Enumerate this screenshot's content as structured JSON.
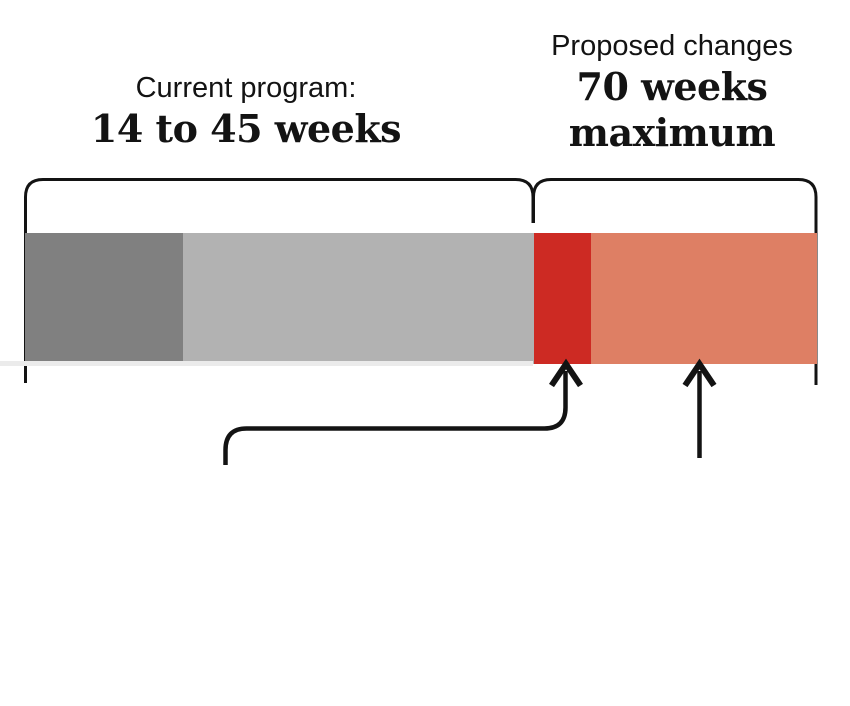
{
  "page": {
    "background_color": "#ffffff"
  },
  "labels": {
    "current": {
      "title": "Current program:",
      "value": "14 to 45 weeks"
    },
    "proposed": {
      "title": "Proposed changes",
      "value_line1": "70 weeks",
      "value_line2": "maximum"
    }
  },
  "chart_data": {
    "type": "bar",
    "subtype": "horizontal-stacked-timeline",
    "unit": "weeks",
    "total_weeks": 70,
    "segments": [
      {
        "name": "current-base",
        "weeks": 14,
        "color": "#808080"
      },
      {
        "name": "current-additional",
        "weeks": 31,
        "color": "#b2b2b2"
      },
      {
        "name": "proposed-new",
        "weeks": 5,
        "color": "#cd2a23"
      },
      {
        "name": "proposed-extension",
        "weeks": 20,
        "color": "#de7f64"
      }
    ],
    "groups": [
      {
        "bracket": "left",
        "label": "Current program: 14 to 45 weeks",
        "covers_weeks": [
          0,
          45
        ]
      },
      {
        "bracket": "right",
        "label": "Proposed changes 70 weeks maximum",
        "covers_weeks": [
          45,
          70
        ]
      }
    ],
    "annotations": [
      {
        "shape": "curved-connector-up-arrow",
        "points_to_segment": "proposed-new"
      },
      {
        "shape": "straight-up-arrow",
        "points_to_segment": "proposed-extension"
      }
    ],
    "line_color": "#131313",
    "grid": false,
    "legend": false
  }
}
